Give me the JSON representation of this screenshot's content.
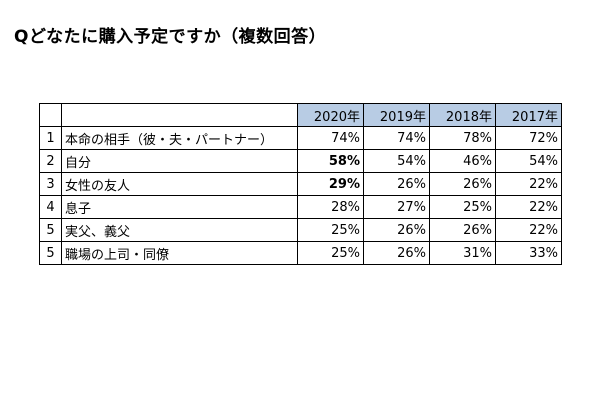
{
  "title": "Qどなたに購入予定ですか（複数回答）",
  "chart_data": {
    "type": "table",
    "title": "Qどなたに購入予定ですか（複数回答）",
    "columns": [
      "2020年",
      "2019年",
      "2018年",
      "2017年"
    ],
    "rows": [
      {
        "rank": "1",
        "label": "本命の相手（彼・夫・パートナー）",
        "values": [
          "74%",
          "74%",
          "78%",
          "72%"
        ],
        "bold": [
          false,
          false,
          false,
          false
        ]
      },
      {
        "rank": "2",
        "label": "自分",
        "values": [
          "58%",
          "54%",
          "46%",
          "54%"
        ],
        "bold": [
          true,
          false,
          false,
          false
        ]
      },
      {
        "rank": "3",
        "label": "女性の友人",
        "values": [
          "29%",
          "26%",
          "26%",
          "22%"
        ],
        "bold": [
          true,
          false,
          false,
          false
        ]
      },
      {
        "rank": "4",
        "label": "息子",
        "values": [
          "28%",
          "27%",
          "25%",
          "22%"
        ],
        "bold": [
          false,
          false,
          false,
          false
        ]
      },
      {
        "rank": "5",
        "label": "実父、義父",
        "values": [
          "25%",
          "26%",
          "26%",
          "22%"
        ],
        "bold": [
          false,
          false,
          false,
          false
        ]
      },
      {
        "rank": "5",
        "label": "職場の上司・同僚",
        "values": [
          "25%",
          "26%",
          "31%",
          "33%"
        ],
        "bold": [
          false,
          false,
          false,
          false
        ]
      }
    ],
    "header_color": "#b8cce4"
  }
}
